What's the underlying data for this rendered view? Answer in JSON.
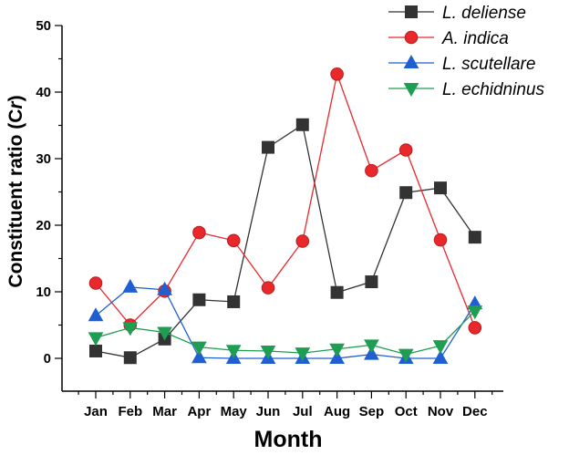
{
  "chart_data": {
    "type": "line",
    "title": "",
    "xlabel": "Month",
    "ylabel": "Constituent ratio (C",
    "ylabel_sub": "r",
    "ylabel_close": ")",
    "categories": [
      "Jan",
      "Feb",
      "Mar",
      "Apr",
      "May",
      "Jun",
      "Jul",
      "Aug",
      "Sep",
      "Oct",
      "Nov",
      "Dec"
    ],
    "ylim": [
      0,
      50
    ],
    "yticks": [
      0,
      10,
      20,
      30,
      40,
      50
    ],
    "grid": false,
    "legend_position": "top-right",
    "series": [
      {
        "name": "L. deliense",
        "color": "#333333",
        "marker": "square",
        "values": [
          1.1,
          0.1,
          2.9,
          8.8,
          8.5,
          31.7,
          35.1,
          9.9,
          11.5,
          24.9,
          25.6,
          18.2
        ]
      },
      {
        "name": "A. indica",
        "color": "#e8282b",
        "marker": "circle",
        "values": [
          11.3,
          5.0,
          10.1,
          18.9,
          17.7,
          10.6,
          17.6,
          42.7,
          28.2,
          31.3,
          17.8,
          4.6
        ]
      },
      {
        "name": "L. scutellare",
        "color": "#1f5fd1",
        "marker": "triangle-up",
        "values": [
          6.4,
          10.7,
          10.3,
          0.1,
          0.0,
          0.0,
          0.0,
          0.0,
          0.6,
          0.0,
          0.0,
          8.2
        ]
      },
      {
        "name": "L. echidninus",
        "color": "#1e9e52",
        "marker": "triangle-down",
        "values": [
          3.1,
          4.6,
          3.9,
          1.7,
          1.2,
          1.1,
          0.8,
          1.4,
          2.0,
          0.6,
          1.9,
          7.1
        ]
      }
    ]
  }
}
